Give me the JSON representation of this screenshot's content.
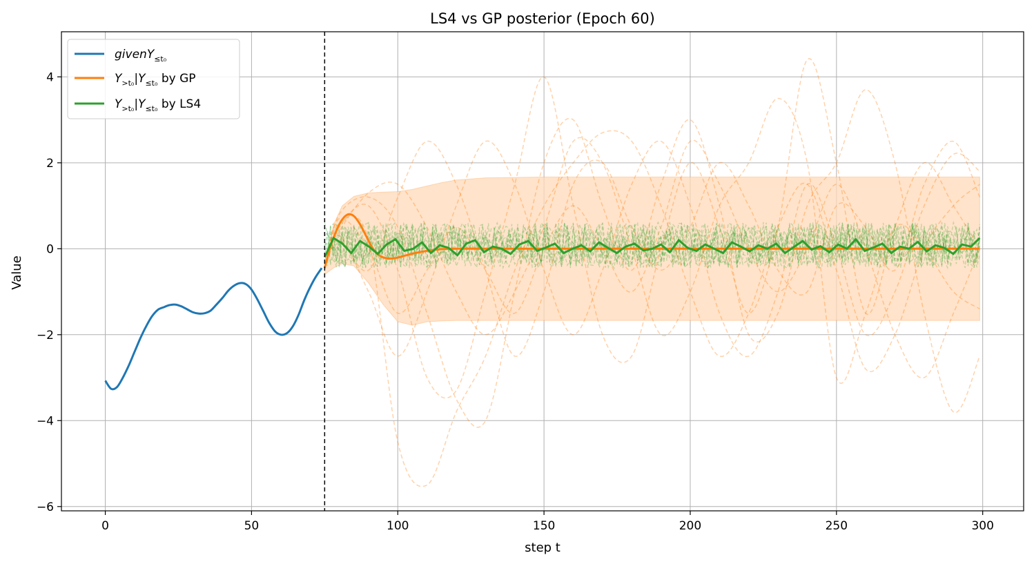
{
  "chart_data": {
    "type": "line",
    "title": "LS4 vs GP posterior (Epoch 60)",
    "xlabel": "step t",
    "ylabel": "Value",
    "xlim": [
      -15,
      314
    ],
    "ylim": [
      -6.1,
      5.05
    ],
    "xticks": [
      0,
      50,
      100,
      150,
      200,
      250,
      300
    ],
    "xtick_labels": [
      "0",
      "50",
      "100",
      "150",
      "200",
      "250",
      "300"
    ],
    "yticks": [
      -6,
      -4,
      -2,
      0,
      2,
      4
    ],
    "ytick_labels": [
      "−6",
      "−4",
      "−2",
      "0",
      "2",
      "4"
    ],
    "grid": true,
    "legend_position": "top-left",
    "t0": 75,
    "colors": {
      "given": "#1f77b4",
      "gp": "#ff7f0e",
      "ls4": "#2ca02c",
      "band": "#ffdab8",
      "grid": "#b0b0b0"
    },
    "legend": [
      {
        "key": "given",
        "label_main": "given",
        "label_var": "Y",
        "label_sub": "≤t₀",
        "label_suffix": ""
      },
      {
        "key": "gp",
        "label_main": "",
        "label_var": "Y",
        "label_sub": ">t₀",
        "label_cond": "|Y",
        "label_sub2": "≤t₀",
        "label_suffix": " by GP"
      },
      {
        "key": "ls4",
        "label_main": "",
        "label_var": "Y",
        "label_sub": ">t₀",
        "label_cond": "|Y",
        "label_sub2": "≤t₀",
        "label_suffix": " by LS4"
      }
    ],
    "series": [
      {
        "name": "givenY≤t₀",
        "x": [
          0,
          2,
          4,
          6,
          8,
          10,
          12,
          14,
          16,
          18,
          20,
          22,
          24,
          26,
          28,
          30,
          32,
          34,
          36,
          38,
          40,
          42,
          44,
          46,
          48,
          50,
          52,
          54,
          56,
          58,
          60,
          62,
          64,
          66,
          68,
          70,
          72,
          74
        ],
        "values": [
          -3.07,
          -3.26,
          -3.22,
          -3.0,
          -2.72,
          -2.4,
          -2.08,
          -1.8,
          -1.57,
          -1.42,
          -1.36,
          -1.31,
          -1.3,
          -1.34,
          -1.41,
          -1.48,
          -1.51,
          -1.5,
          -1.44,
          -1.3,
          -1.15,
          -0.98,
          -0.86,
          -0.8,
          -0.82,
          -0.95,
          -1.18,
          -1.45,
          -1.72,
          -1.92,
          -2.0,
          -1.97,
          -1.82,
          -1.55,
          -1.2,
          -0.9,
          -0.65,
          -0.45
        ]
      },
      {
        "name": "Y>t₀|Y≤t₀ by GP (mean)",
        "x": [
          75,
          77,
          79,
          81,
          83,
          85,
          87,
          89,
          91,
          93,
          95,
          97,
          99,
          101,
          103,
          106,
          110,
          115,
          120,
          130,
          140,
          160,
          200,
          250,
          299
        ],
        "values": [
          -0.45,
          0.05,
          0.42,
          0.68,
          0.8,
          0.76,
          0.58,
          0.32,
          0.06,
          -0.12,
          -0.2,
          -0.23,
          -0.22,
          -0.19,
          -0.15,
          -0.1,
          -0.05,
          -0.01,
          0.0,
          0.0,
          0.0,
          0.0,
          0.0,
          0.0,
          0.0
        ]
      },
      {
        "name": "GP band upper",
        "x": [
          75,
          78,
          81,
          85,
          90,
          95,
          100,
          105,
          110,
          115,
          120,
          130,
          150,
          200,
          250,
          299
        ],
        "values": [
          -0.3,
          0.55,
          1.0,
          1.22,
          1.3,
          1.32,
          1.33,
          1.38,
          1.46,
          1.54,
          1.6,
          1.65,
          1.67,
          1.67,
          1.67,
          1.67
        ]
      },
      {
        "name": "GP band lower",
        "x": [
          75,
          78,
          81,
          85,
          90,
          95,
          100,
          105,
          110,
          115,
          120,
          130,
          150,
          200,
          250,
          299
        ],
        "values": [
          -0.6,
          -0.45,
          -0.35,
          -0.4,
          -0.8,
          -1.3,
          -1.7,
          -1.78,
          -1.7,
          -1.68,
          -1.67,
          -1.67,
          -1.67,
          -1.67,
          -1.67,
          -1.67
        ]
      },
      {
        "name": "GP samples",
        "x": [
          75,
          80,
          90,
          100,
          110,
          120,
          130,
          140,
          150,
          160,
          170,
          180,
          190,
          200,
          210,
          220,
          230,
          240,
          250,
          260,
          270,
          280,
          290,
          299
        ],
        "samples": [
          [
            -0.45,
            0.5,
            1.0,
            -0.5,
            -3.0,
            -3.3,
            -1.0,
            1.5,
            4.0,
            1.0,
            -2.0,
            -2.5,
            0.0,
            2.0,
            0.5,
            -1.5,
            0.5,
            4.4,
            2.0,
            -1.5,
            0.5,
            2.0,
            1.0,
            0.0
          ],
          [
            -0.45,
            0.8,
            1.2,
            0.5,
            -1.5,
            -3.5,
            -4.0,
            -1.0,
            2.0,
            3.0,
            1.0,
            -0.5,
            1.5,
            3.0,
            1.0,
            -2.0,
            -1.5,
            1.0,
            2.0,
            3.7,
            2.0,
            -1.5,
            -3.8,
            -2.5
          ],
          [
            -0.45,
            0.3,
            -1.0,
            -2.5,
            -1.0,
            1.0,
            2.5,
            1.5,
            -0.5,
            -2.0,
            -0.5,
            1.5,
            2.5,
            1.0,
            -1.5,
            -2.5,
            -1.0,
            1.5,
            0.0,
            -2.0,
            -1.0,
            1.0,
            2.2,
            1.8
          ],
          [
            -0.45,
            0.6,
            0.2,
            -4.5,
            -5.5,
            -3.8,
            -2.5,
            -0.5,
            1.0,
            2.0,
            2.7,
            2.5,
            1.0,
            -1.0,
            -2.5,
            -1.5,
            0.5,
            1.5,
            -0.5,
            -2.8,
            -2.0,
            0.0,
            1.0,
            1.5
          ],
          [
            -0.45,
            0.4,
            1.3,
            1.5,
            0.5,
            -1.0,
            -2.0,
            -1.0,
            0.5,
            2.5,
            2.0,
            0.0,
            -2.0,
            -1.0,
            1.0,
            2.0,
            3.5,
            2.0,
            -3.0,
            -1.5,
            0.5,
            0.0,
            -1.0,
            -1.4
          ],
          [
            -0.45,
            0.2,
            -0.5,
            1.2,
            2.5,
            1.5,
            -0.5,
            -2.5,
            -1.0,
            1.5,
            2.0,
            0.5,
            -0.5,
            0.5,
            2.0,
            1.0,
            -0.5,
            -1.0,
            1.0,
            0.5,
            -0.5,
            1.5,
            2.5,
            1.2
          ],
          [
            -0.45,
            0.7,
            0.0,
            -1.5,
            -0.5,
            0.5,
            -0.5,
            -1.5,
            0.0,
            1.0,
            0.0,
            -1.0,
            0.5,
            2.5,
            1.5,
            0.0,
            -1.0,
            0.0,
            1.5,
            0.0,
            -2.0,
            -3.0,
            -1.5,
            0.0
          ]
        ]
      },
      {
        "name": "Y>t₀|Y≤t₀ by LS4 (mean)",
        "x_start": 75,
        "x_end": 299,
        "values": [
          -0.2,
          0.25,
          0.12,
          -0.1,
          0.18,
          0.05,
          -0.12,
          0.1,
          0.22,
          -0.05,
          0.0,
          0.15,
          -0.1,
          0.08,
          0.02,
          -0.15,
          0.12,
          0.2,
          -0.08,
          0.05,
          0.0,
          -0.12,
          0.1,
          0.18,
          -0.05,
          0.03,
          0.12,
          -0.1,
          0.0,
          0.08,
          -0.06,
          0.15,
          0.02,
          -0.1,
          0.05,
          0.12,
          -0.04,
          0.0,
          0.1,
          -0.08,
          0.2,
          0.02,
          -0.05,
          0.1,
          0.0,
          -0.1,
          0.15,
          0.05,
          -0.06,
          0.08,
          0.0,
          0.12,
          -0.1,
          0.04,
          0.18,
          -0.02,
          0.06,
          -0.08,
          0.1,
          0.0,
          0.22,
          -0.05,
          0.03,
          0.12,
          -0.1,
          0.05,
          0.0,
          0.16,
          -0.06,
          0.08,
          0.02,
          -0.12,
          0.1,
          0.05,
          0.25
        ]
      }
    ]
  }
}
